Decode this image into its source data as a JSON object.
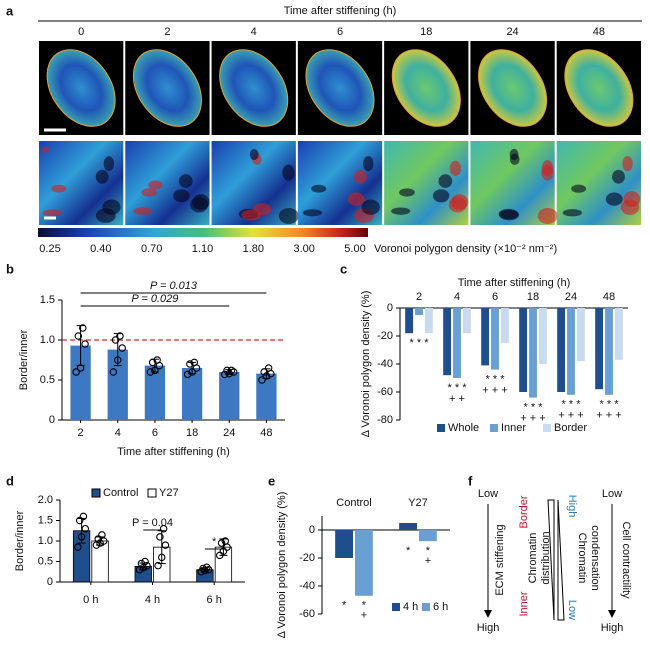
{
  "panel_labels": [
    "a",
    "b",
    "c",
    "d",
    "e",
    "f"
  ],
  "panel_a": {
    "title": "Time after stiffening (h)",
    "columns": [
      "0",
      "2",
      "4",
      "6",
      "18",
      "24",
      "48"
    ],
    "colorbar_ticks": [
      "0.25",
      "0.40",
      "0.70",
      "1.10",
      "1.80",
      "3.00",
      "5.00"
    ],
    "colorbar_label": "Voronoi polygon density (×10⁻² nm⁻²)"
  },
  "chart_data": [
    {
      "type": "bar",
      "categories": [
        "2",
        "4",
        "6",
        "18",
        "24",
        "48"
      ],
      "values": [
        0.93,
        0.88,
        0.68,
        0.65,
        0.6,
        0.58
      ],
      "errors": [
        0.25,
        0.2,
        0.08,
        0.07,
        0.03,
        0.06
      ],
      "points": [
        [
          0.6,
          0.65,
          0.95,
          1.05,
          1.15
        ],
        [
          0.6,
          0.75,
          0.9,
          1.0,
          1.05
        ],
        [
          0.6,
          0.62,
          0.68,
          0.72,
          0.75
        ],
        [
          0.57,
          0.6,
          0.65,
          0.7,
          0.72
        ],
        [
          0.57,
          0.58,
          0.6,
          0.62,
          0.62
        ],
        [
          0.5,
          0.55,
          0.58,
          0.6,
          0.65
        ]
      ],
      "color": "#3d78c2",
      "ylim": [
        0,
        1.5
      ],
      "yticks": [
        0,
        0.5,
        {
          "value": 1,
          "label": "1.0"
        },
        1.5
      ],
      "reference_line": 1,
      "reference_color": "#d62728",
      "xlabel": "Time after stiffening (h)",
      "ylabel": "Border/inner",
      "brackets": [
        {
          "label": "P = 0.013",
          "span": [
            "2",
            "48"
          ]
        },
        {
          "label": "P = 0.029",
          "span": [
            "2",
            "24"
          ]
        }
      ]
    },
    {
      "type": "bar",
      "title": "Time after stiffening (h)",
      "categories": [
        "2",
        "4",
        "6",
        "18",
        "24",
        "48"
      ],
      "series": [
        {
          "name": "Whole",
          "color": "#1f4e8c",
          "values": [
            -18,
            -48,
            -41,
            -60,
            -60,
            -58
          ]
        },
        {
          "name": "Inner",
          "color": "#6a9fd4",
          "values": [
            -5,
            -50,
            -44,
            -64,
            -62,
            -62
          ]
        },
        {
          "name": "Border",
          "color": "#c8daf0",
          "values": [
            -18,
            -18,
            -25,
            -40,
            -38,
            -37
          ]
        }
      ],
      "ylim": [
        -80,
        0
      ],
      "yticks": [
        0,
        -20,
        -40,
        -60,
        -80
      ],
      "ylabel": "Δ Voronoi polygon density (%)",
      "significance": [
        [
          "* * *"
        ],
        [
          "* * *",
          "+ +"
        ],
        [
          "* * *",
          "+ + +"
        ],
        [
          "* * *",
          "+ + +"
        ],
        [
          "* * *",
          "+ + +"
        ],
        [
          "* * *",
          "+ + +"
        ]
      ]
    },
    {
      "type": "bar",
      "categories": [
        "0 h",
        "4 h",
        "6 h"
      ],
      "series": [
        {
          "name": "Control",
          "color": "#1f4e8c",
          "values": [
            1.25,
            0.38,
            0.3
          ],
          "errors": [
            0.3,
            0.08,
            0.05
          ],
          "points": [
            [
              0.85,
              1.1,
              1.3,
              1.5,
              1.6
            ],
            [
              0.3,
              0.35,
              0.4,
              0.45,
              0.5
            ],
            [
              0.25,
              0.28,
              0.3,
              0.33,
              0.36
            ]
          ]
        },
        {
          "name": "Y27",
          "color": "#ffffff",
          "values": [
            1.0,
            0.85,
            0.85
          ],
          "errors": [
            0.1,
            0.4,
            0.2
          ],
          "points": [
            [
              0.9,
              0.95,
              1.0,
              1.05,
              1.15
            ],
            [
              0.4,
              0.6,
              0.9,
              1.1,
              1.3
            ],
            [
              0.65,
              0.75,
              0.85,
              0.95,
              1.0
            ]
          ]
        }
      ],
      "ylim": [
        0,
        2
      ],
      "yticks": [
        0,
        0.5,
        {
          "value": 1,
          "label": "1.0"
        },
        1.5,
        {
          "value": 2,
          "label": "2.0"
        }
      ],
      "ylabel": "Border/inner",
      "annotations": [
        {
          "label": "P = 0.04",
          "category": "4 h"
        },
        {
          "label": "*",
          "category": "6 h"
        }
      ]
    },
    {
      "type": "bar",
      "categories": [
        "Control",
        "Y27"
      ],
      "series": [
        {
          "name": "4 h",
          "color": "#1f4e8c",
          "values": [
            -20,
            5
          ],
          "significance": [
            [
              "*"
            ],
            [
              "*"
            ]
          ]
        },
        {
          "name": "6 h",
          "color": "#6a9fd4",
          "values": [
            -47,
            -8
          ],
          "significance": [
            [
              "*",
              "+"
            ],
            [
              "*",
              "+"
            ]
          ]
        }
      ],
      "ylim": [
        -60,
        10
      ],
      "yticks": [
        0,
        -20,
        -40,
        -60
      ],
      "ylabel": "Δ Voronoi polygon density (%)"
    }
  ],
  "panel_f": {
    "ecm": {
      "low": "Low",
      "label": "ECM stiffening",
      "high": "High"
    },
    "distribution": {
      "top": "Border",
      "bottom": "Inner",
      "label": [
        "Chromatin",
        "distribution"
      ]
    },
    "condensation": {
      "top": "High",
      "bottom": "Low",
      "label": [
        "Chromatin",
        "condensation"
      ]
    },
    "contractility": {
      "low": "Low",
      "label": "Cell contractility",
      "high": "High"
    }
  }
}
